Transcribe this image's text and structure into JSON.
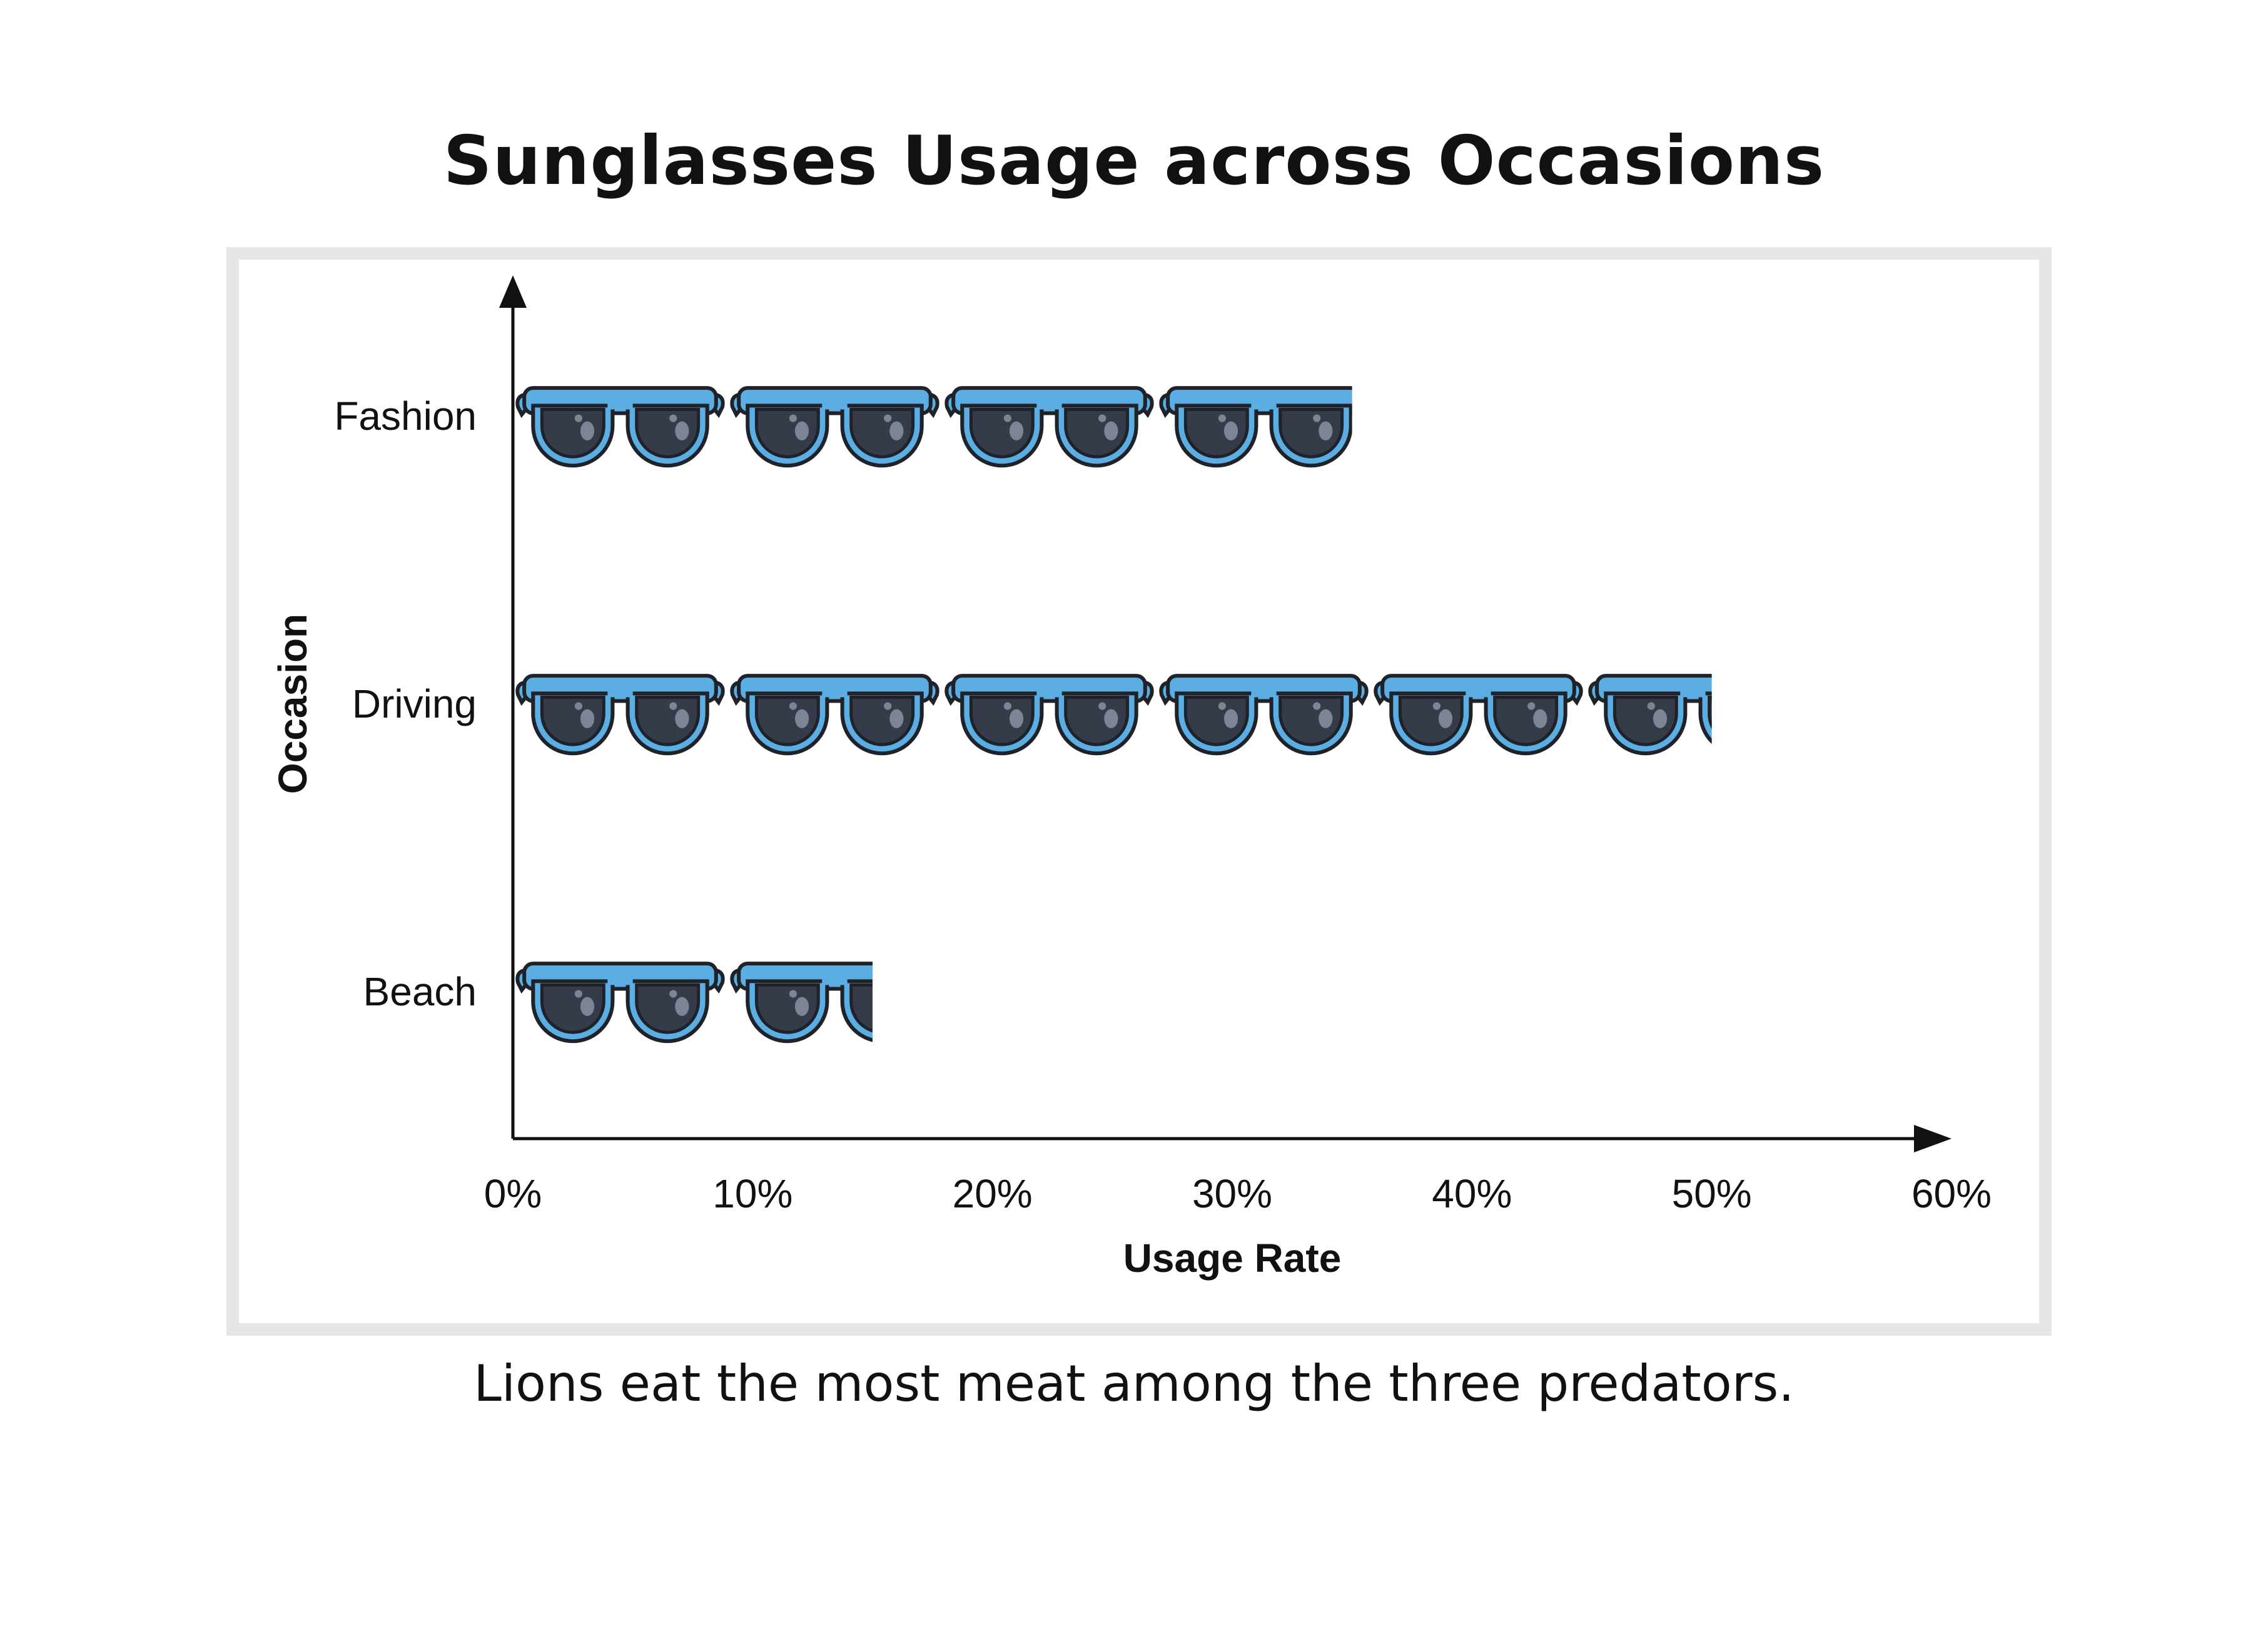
{
  "title": "Sunglasses Usage across Occasions",
  "caption": "Lions eat the most meat among the three predators.",
  "icon": "sunglasses-icon",
  "colors": {
    "frame": "#2b6f9f",
    "frame_fill": "#5aaee3",
    "lens": "#353b48",
    "outline": "#1f2329"
  },
  "chart_data": {
    "type": "bar",
    "orientation": "horizontal",
    "style": "pictograph",
    "categories": [
      "Fashion",
      "Driving",
      "Beach"
    ],
    "values": [
      35,
      50,
      15
    ],
    "unit_per_icon": 8.75,
    "xlabel": "Usage Rate",
    "ylabel": "Occasion",
    "xlim": [
      0,
      60
    ],
    "xticks": [
      0,
      10,
      20,
      30,
      40,
      50,
      60
    ],
    "xtick_labels": [
      "0%",
      "10%",
      "20%",
      "30%",
      "40%",
      "50%",
      "60%"
    ],
    "grid": false,
    "legend": "none"
  }
}
